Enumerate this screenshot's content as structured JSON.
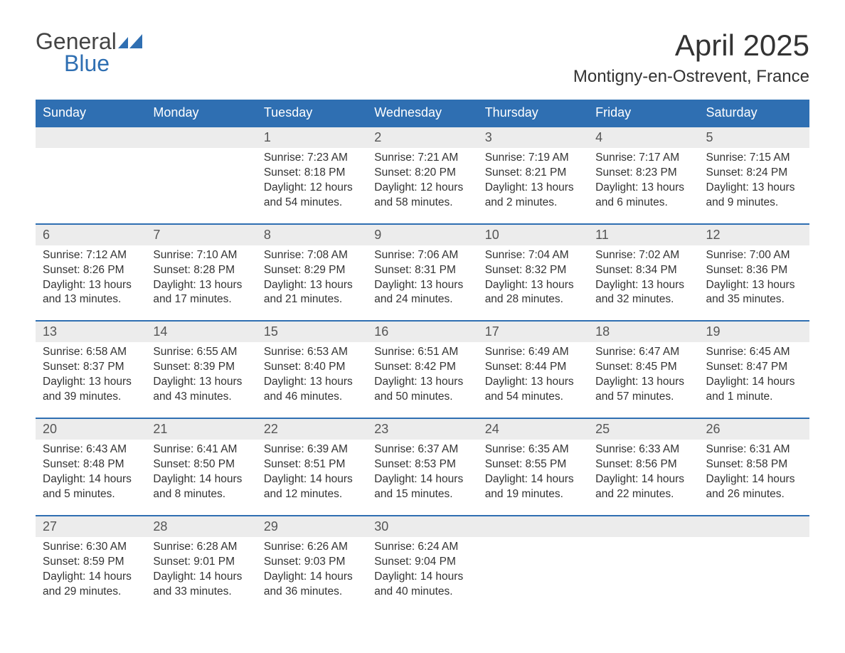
{
  "logo": {
    "text1": "General",
    "text2": "Blue"
  },
  "title": "April 2025",
  "subtitle": "Montigny-en-Ostrevent, France",
  "colors": {
    "header_bg": "#2f6fb2",
    "header_text": "#ffffff",
    "daynum_bg": "#ececec",
    "week_border": "#2f6fb2",
    "body_text": "#333333",
    "logo_blue": "#2f6fb2",
    "logo_gray": "#444444",
    "page_bg": "#ffffff"
  },
  "layout": {
    "columns": 7,
    "weeks": 5,
    "title_fontsize": 42,
    "subtitle_fontsize": 24,
    "weekday_fontsize": 18,
    "daynum_fontsize": 18,
    "cell_fontsize": 15.5
  },
  "weekdays": [
    "Sunday",
    "Monday",
    "Tuesday",
    "Wednesday",
    "Thursday",
    "Friday",
    "Saturday"
  ],
  "weeks": [
    {
      "days": [
        {
          "num": "",
          "sunrise": "",
          "sunset": "",
          "daylight": ""
        },
        {
          "num": "",
          "sunrise": "",
          "sunset": "",
          "daylight": ""
        },
        {
          "num": "1",
          "sunrise": "Sunrise: 7:23 AM",
          "sunset": "Sunset: 8:18 PM",
          "daylight": "Daylight: 12 hours and 54 minutes."
        },
        {
          "num": "2",
          "sunrise": "Sunrise: 7:21 AM",
          "sunset": "Sunset: 8:20 PM",
          "daylight": "Daylight: 12 hours and 58 minutes."
        },
        {
          "num": "3",
          "sunrise": "Sunrise: 7:19 AM",
          "sunset": "Sunset: 8:21 PM",
          "daylight": "Daylight: 13 hours and 2 minutes."
        },
        {
          "num": "4",
          "sunrise": "Sunrise: 7:17 AM",
          "sunset": "Sunset: 8:23 PM",
          "daylight": "Daylight: 13 hours and 6 minutes."
        },
        {
          "num": "5",
          "sunrise": "Sunrise: 7:15 AM",
          "sunset": "Sunset: 8:24 PM",
          "daylight": "Daylight: 13 hours and 9 minutes."
        }
      ]
    },
    {
      "days": [
        {
          "num": "6",
          "sunrise": "Sunrise: 7:12 AM",
          "sunset": "Sunset: 8:26 PM",
          "daylight": "Daylight: 13 hours and 13 minutes."
        },
        {
          "num": "7",
          "sunrise": "Sunrise: 7:10 AM",
          "sunset": "Sunset: 8:28 PM",
          "daylight": "Daylight: 13 hours and 17 minutes."
        },
        {
          "num": "8",
          "sunrise": "Sunrise: 7:08 AM",
          "sunset": "Sunset: 8:29 PM",
          "daylight": "Daylight: 13 hours and 21 minutes."
        },
        {
          "num": "9",
          "sunrise": "Sunrise: 7:06 AM",
          "sunset": "Sunset: 8:31 PM",
          "daylight": "Daylight: 13 hours and 24 minutes."
        },
        {
          "num": "10",
          "sunrise": "Sunrise: 7:04 AM",
          "sunset": "Sunset: 8:32 PM",
          "daylight": "Daylight: 13 hours and 28 minutes."
        },
        {
          "num": "11",
          "sunrise": "Sunrise: 7:02 AM",
          "sunset": "Sunset: 8:34 PM",
          "daylight": "Daylight: 13 hours and 32 minutes."
        },
        {
          "num": "12",
          "sunrise": "Sunrise: 7:00 AM",
          "sunset": "Sunset: 8:36 PM",
          "daylight": "Daylight: 13 hours and 35 minutes."
        }
      ]
    },
    {
      "days": [
        {
          "num": "13",
          "sunrise": "Sunrise: 6:58 AM",
          "sunset": "Sunset: 8:37 PM",
          "daylight": "Daylight: 13 hours and 39 minutes."
        },
        {
          "num": "14",
          "sunrise": "Sunrise: 6:55 AM",
          "sunset": "Sunset: 8:39 PM",
          "daylight": "Daylight: 13 hours and 43 minutes."
        },
        {
          "num": "15",
          "sunrise": "Sunrise: 6:53 AM",
          "sunset": "Sunset: 8:40 PM",
          "daylight": "Daylight: 13 hours and 46 minutes."
        },
        {
          "num": "16",
          "sunrise": "Sunrise: 6:51 AM",
          "sunset": "Sunset: 8:42 PM",
          "daylight": "Daylight: 13 hours and 50 minutes."
        },
        {
          "num": "17",
          "sunrise": "Sunrise: 6:49 AM",
          "sunset": "Sunset: 8:44 PM",
          "daylight": "Daylight: 13 hours and 54 minutes."
        },
        {
          "num": "18",
          "sunrise": "Sunrise: 6:47 AM",
          "sunset": "Sunset: 8:45 PM",
          "daylight": "Daylight: 13 hours and 57 minutes."
        },
        {
          "num": "19",
          "sunrise": "Sunrise: 6:45 AM",
          "sunset": "Sunset: 8:47 PM",
          "daylight": "Daylight: 14 hours and 1 minute."
        }
      ]
    },
    {
      "days": [
        {
          "num": "20",
          "sunrise": "Sunrise: 6:43 AM",
          "sunset": "Sunset: 8:48 PM",
          "daylight": "Daylight: 14 hours and 5 minutes."
        },
        {
          "num": "21",
          "sunrise": "Sunrise: 6:41 AM",
          "sunset": "Sunset: 8:50 PM",
          "daylight": "Daylight: 14 hours and 8 minutes."
        },
        {
          "num": "22",
          "sunrise": "Sunrise: 6:39 AM",
          "sunset": "Sunset: 8:51 PM",
          "daylight": "Daylight: 14 hours and 12 minutes."
        },
        {
          "num": "23",
          "sunrise": "Sunrise: 6:37 AM",
          "sunset": "Sunset: 8:53 PM",
          "daylight": "Daylight: 14 hours and 15 minutes."
        },
        {
          "num": "24",
          "sunrise": "Sunrise: 6:35 AM",
          "sunset": "Sunset: 8:55 PM",
          "daylight": "Daylight: 14 hours and 19 minutes."
        },
        {
          "num": "25",
          "sunrise": "Sunrise: 6:33 AM",
          "sunset": "Sunset: 8:56 PM",
          "daylight": "Daylight: 14 hours and 22 minutes."
        },
        {
          "num": "26",
          "sunrise": "Sunrise: 6:31 AM",
          "sunset": "Sunset: 8:58 PM",
          "daylight": "Daylight: 14 hours and 26 minutes."
        }
      ]
    },
    {
      "days": [
        {
          "num": "27",
          "sunrise": "Sunrise: 6:30 AM",
          "sunset": "Sunset: 8:59 PM",
          "daylight": "Daylight: 14 hours and 29 minutes."
        },
        {
          "num": "28",
          "sunrise": "Sunrise: 6:28 AM",
          "sunset": "Sunset: 9:01 PM",
          "daylight": "Daylight: 14 hours and 33 minutes."
        },
        {
          "num": "29",
          "sunrise": "Sunrise: 6:26 AM",
          "sunset": "Sunset: 9:03 PM",
          "daylight": "Daylight: 14 hours and 36 minutes."
        },
        {
          "num": "30",
          "sunrise": "Sunrise: 6:24 AM",
          "sunset": "Sunset: 9:04 PM",
          "daylight": "Daylight: 14 hours and 40 minutes."
        },
        {
          "num": "",
          "sunrise": "",
          "sunset": "",
          "daylight": ""
        },
        {
          "num": "",
          "sunrise": "",
          "sunset": "",
          "daylight": ""
        },
        {
          "num": "",
          "sunrise": "",
          "sunset": "",
          "daylight": ""
        }
      ]
    }
  ]
}
